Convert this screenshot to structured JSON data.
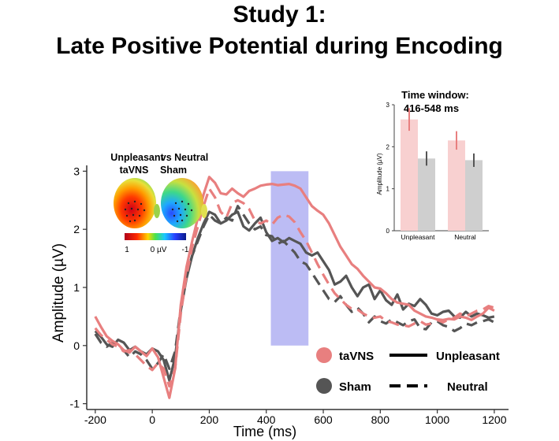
{
  "title": {
    "line1": "Study 1:",
    "line2": "Late Positive Potential during Encoding"
  },
  "colors": {
    "tavns": "#e87f7f",
    "sham": "#555555",
    "window": "#b5b5f3",
    "inset_tavns": "#f8d0d0",
    "inset_sham": "#cfcfcf"
  },
  "chart_data": [
    {
      "type": "line",
      "title": "",
      "xlabel": "Time (ms)",
      "ylabel": "Amplitude (µV)",
      "xlim": [
        -230,
        1250
      ],
      "ylim": [
        -1.1,
        3.1
      ],
      "xticks": [
        -200,
        0,
        200,
        400,
        600,
        800,
        1000,
        1200
      ],
      "yticks": [
        -1,
        0,
        1,
        2,
        3
      ],
      "highlight_window": [
        416,
        548
      ],
      "series": [
        {
          "name": "taVNS Unpleasant",
          "condition": "taVNS",
          "valence": "Unpleasant",
          "style": "solid",
          "x": [
            -200,
            -180,
            -160,
            -140,
            -120,
            -100,
            -80,
            -60,
            -40,
            -20,
            0,
            20,
            40,
            60,
            80,
            100,
            120,
            140,
            160,
            180,
            200,
            220,
            240,
            260,
            280,
            300,
            320,
            340,
            360,
            380,
            400,
            420,
            440,
            460,
            480,
            500,
            520,
            540,
            560,
            580,
            600,
            620,
            640,
            660,
            680,
            700,
            720,
            740,
            760,
            780,
            800,
            820,
            840,
            860,
            880,
            900,
            920,
            940,
            960,
            980,
            1000,
            1020,
            1040,
            1060,
            1080,
            1100,
            1120,
            1140,
            1160,
            1180,
            1200
          ],
          "y": [
            0.5,
            0.32,
            0.16,
            0.08,
            0.02,
            -0.08,
            -0.12,
            -0.02,
            -0.1,
            -0.18,
            -0.05,
            -0.2,
            -0.55,
            -0.9,
            -0.4,
            0.7,
            1.35,
            1.8,
            2.2,
            2.6,
            2.9,
            2.8,
            2.62,
            2.6,
            2.7,
            2.62,
            2.56,
            2.66,
            2.7,
            2.75,
            2.77,
            2.78,
            2.76,
            2.77,
            2.78,
            2.75,
            2.7,
            2.55,
            2.4,
            2.32,
            2.25,
            2.1,
            1.9,
            1.7,
            1.55,
            1.4,
            1.32,
            1.2,
            1.1,
            1.0,
            0.98,
            0.9,
            0.8,
            0.74,
            0.72,
            0.7,
            0.6,
            0.55,
            0.5,
            0.48,
            0.45,
            0.44,
            0.46,
            0.45,
            0.5,
            0.48,
            0.44,
            0.5,
            0.55,
            0.65,
            0.6
          ]
        },
        {
          "name": "taVNS Neutral",
          "condition": "taVNS",
          "valence": "Neutral",
          "style": "dashed",
          "x": [
            -200,
            -180,
            -160,
            -140,
            -120,
            -100,
            -80,
            -60,
            -40,
            -20,
            0,
            20,
            40,
            60,
            80,
            100,
            120,
            140,
            160,
            180,
            200,
            220,
            240,
            260,
            280,
            300,
            320,
            340,
            360,
            380,
            400,
            420,
            440,
            460,
            480,
            500,
            520,
            540,
            560,
            580,
            600,
            620,
            640,
            660,
            680,
            700,
            720,
            740,
            760,
            780,
            800,
            820,
            840,
            860,
            880,
            900,
            920,
            940,
            960,
            980,
            1000,
            1020,
            1040,
            1060,
            1080,
            1100,
            1120,
            1140,
            1160,
            1180,
            1200
          ],
          "y": [
            0.3,
            0.18,
            0.1,
            0.02,
            -0.02,
            -0.1,
            -0.08,
            -0.15,
            -0.25,
            -0.35,
            -0.42,
            -0.3,
            -0.4,
            -0.7,
            -0.4,
            0.55,
            1.2,
            1.7,
            2.05,
            2.4,
            2.7,
            2.55,
            2.3,
            2.2,
            2.45,
            2.5,
            2.45,
            2.35,
            2.15,
            2.1,
            2.15,
            2.08,
            2.2,
            2.25,
            2.22,
            2.12,
            1.95,
            1.8,
            1.6,
            1.4,
            1.22,
            1.05,
            0.9,
            0.8,
            0.7,
            0.63,
            0.62,
            0.55,
            0.5,
            0.48,
            0.5,
            0.42,
            0.4,
            0.36,
            0.35,
            0.33,
            0.38,
            0.42,
            0.36,
            0.38,
            0.44,
            0.4,
            0.45,
            0.48,
            0.55,
            0.5,
            0.55,
            0.6,
            0.62,
            0.68,
            0.65
          ]
        },
        {
          "name": "Sham Unpleasant",
          "condition": "Sham",
          "valence": "Unpleasant",
          "style": "solid",
          "x": [
            -200,
            -180,
            -160,
            -140,
            -120,
            -100,
            -80,
            -60,
            -40,
            -20,
            0,
            20,
            40,
            60,
            80,
            100,
            120,
            140,
            160,
            180,
            200,
            220,
            240,
            260,
            280,
            300,
            320,
            340,
            360,
            380,
            400,
            420,
            440,
            460,
            480,
            500,
            520,
            540,
            560,
            580,
            600,
            620,
            640,
            660,
            680,
            700,
            720,
            740,
            760,
            780,
            800,
            820,
            840,
            860,
            880,
            900,
            920,
            940,
            960,
            980,
            1000,
            1020,
            1040,
            1060,
            1080,
            1100,
            1120,
            1140,
            1160,
            1180,
            1200
          ],
          "y": [
            0.25,
            0.15,
            0.02,
            -0.02,
            0.1,
            0.05,
            -0.08,
            -0.02,
            -0.1,
            -0.15,
            -0.05,
            -0.1,
            -0.25,
            -0.6,
            -0.2,
            0.6,
            1.15,
            1.55,
            1.85,
            2.1,
            2.3,
            2.25,
            2.1,
            2.15,
            2.25,
            2.3,
            2.05,
            1.98,
            2.1,
            2.2,
            1.95,
            1.8,
            1.85,
            1.78,
            1.85,
            1.8,
            1.75,
            1.6,
            1.55,
            1.6,
            1.45,
            1.3,
            1.05,
            1.1,
            1.2,
            1.0,
            0.85,
            1.0,
            1.05,
            0.8,
            0.95,
            0.78,
            0.7,
            0.88,
            0.62,
            0.72,
            0.68,
            0.8,
            0.7,
            0.55,
            0.52,
            0.58,
            0.6,
            0.5,
            0.48,
            0.58,
            0.5,
            0.55,
            0.52,
            0.48,
            0.5
          ]
        },
        {
          "name": "Sham Neutral",
          "condition": "Sham",
          "valence": "Neutral",
          "style": "dashed",
          "x": [
            -200,
            -180,
            -160,
            -140,
            -120,
            -100,
            -80,
            -60,
            -40,
            -20,
            0,
            20,
            40,
            60,
            80,
            100,
            120,
            140,
            160,
            180,
            200,
            220,
            240,
            260,
            280,
            300,
            320,
            340,
            360,
            380,
            400,
            420,
            440,
            460,
            480,
            500,
            520,
            540,
            560,
            580,
            600,
            620,
            640,
            660,
            680,
            700,
            720,
            740,
            760,
            780,
            800,
            820,
            840,
            860,
            880,
            900,
            920,
            940,
            960,
            980,
            1000,
            1020,
            1040,
            1060,
            1080,
            1100,
            1120,
            1140,
            1160,
            1180,
            1200
          ],
          "y": [
            0.2,
            0.05,
            -0.02,
            0.05,
            0.0,
            -0.08,
            -0.2,
            -0.1,
            -0.15,
            -0.25,
            -0.4,
            -0.3,
            -0.15,
            -0.4,
            -0.1,
            0.65,
            1.2,
            1.55,
            1.8,
            2.05,
            2.25,
            2.15,
            2.1,
            2.2,
            2.15,
            2.4,
            2.25,
            2.1,
            2.0,
            2.05,
            1.9,
            1.88,
            1.75,
            1.8,
            1.7,
            1.6,
            1.45,
            1.4,
            1.25,
            1.1,
            0.95,
            0.8,
            0.75,
            0.85,
            0.7,
            0.58,
            0.65,
            0.55,
            0.4,
            0.5,
            0.42,
            0.38,
            0.45,
            0.4,
            0.35,
            0.42,
            0.45,
            0.3,
            0.28,
            0.4,
            0.42,
            0.35,
            0.32,
            0.25,
            0.3,
            0.38,
            0.35,
            0.4,
            0.42,
            0.45,
            0.4
          ]
        }
      ],
      "legend": {
        "placement": "bottom-right",
        "conditions": [
          {
            "label": "taVNS",
            "color": "#e87f7f"
          },
          {
            "label": "Sham",
            "color": "#555555"
          }
        ],
        "styles": [
          {
            "label": "Unpleasant",
            "style": "solid"
          },
          {
            "label": "Neutral",
            "style": "dashed"
          }
        ]
      }
    },
    {
      "type": "bar",
      "title": "Time window:",
      "subtitle": "416-548 ms",
      "xlabel": "",
      "ylabel": "Amplitude (µV)",
      "ylim": [
        0,
        3
      ],
      "yticks": [
        0,
        1,
        2,
        3
      ],
      "categories": [
        "Unpleasant",
        "Neutral"
      ],
      "series": [
        {
          "name": "taVNS",
          "values": [
            2.65,
            2.15
          ],
          "errors": [
            0.27,
            0.22
          ]
        },
        {
          "name": "Sham",
          "values": [
            1.72,
            1.68
          ],
          "errors": [
            0.17,
            0.16
          ]
        }
      ]
    }
  ],
  "topomap": {
    "label_left_line1": "Unpleasant",
    "label_vs_line1": "vs Neutral",
    "label_left_line2": "taVNS",
    "label_right_line2": "Sham",
    "scale_max": "1",
    "scale_mid": "0 µV",
    "scale_min": "-1"
  }
}
